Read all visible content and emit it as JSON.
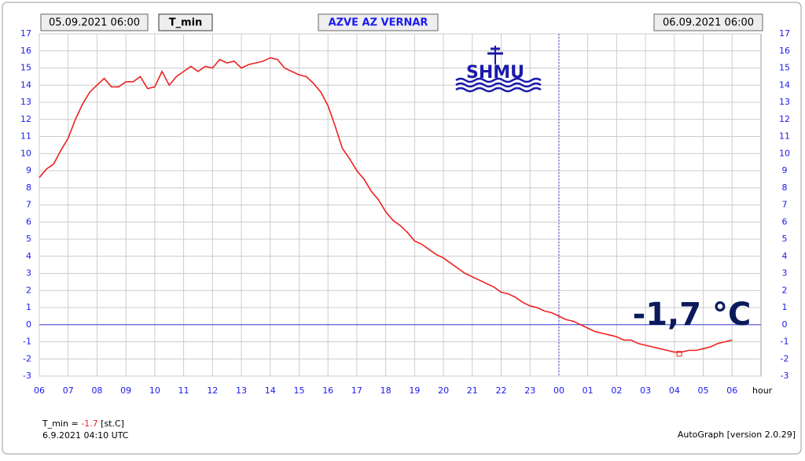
{
  "chart_data": {
    "type": "line",
    "header": {
      "start": "05.09.2021 06:00",
      "variable": "T_min",
      "station": "AZVE AZ VERNAR",
      "end": "06.09.2021 06:00"
    },
    "logo": "SHMU",
    "big_label": "-1,7 °C",
    "x_unit": "hour",
    "footer": {
      "name": "T_min =",
      "value": -1.7,
      "unit": "[st.C]",
      "time": "6.9.2021 04:10 UTC",
      "version": "AutoGraph [version 2.0.29]"
    },
    "min_point": {
      "x": 22.17,
      "y": -1.7
    },
    "day_boundary": 18,
    "xlim": [
      0,
      25
    ],
    "ylim": [
      -3,
      17
    ],
    "xticks": [
      {
        "value": 0,
        "label": "06"
      },
      {
        "value": 1,
        "label": "07"
      },
      {
        "value": 2,
        "label": "08"
      },
      {
        "value": 3,
        "label": "09"
      },
      {
        "value": 4,
        "label": "10"
      },
      {
        "value": 5,
        "label": "11"
      },
      {
        "value": 6,
        "label": "12"
      },
      {
        "value": 7,
        "label": "13"
      },
      {
        "value": 8,
        "label": "14"
      },
      {
        "value": 9,
        "label": "15"
      },
      {
        "value": 10,
        "label": "16"
      },
      {
        "value": 11,
        "label": "17"
      },
      {
        "value": 12,
        "label": "18"
      },
      {
        "value": 13,
        "label": "19"
      },
      {
        "value": 14,
        "label": "20"
      },
      {
        "value": 15,
        "label": "21"
      },
      {
        "value": 16,
        "label": "22"
      },
      {
        "value": 17,
        "label": "23"
      },
      {
        "value": 18,
        "label": "00"
      },
      {
        "value": 19,
        "label": "01"
      },
      {
        "value": 20,
        "label": "02"
      },
      {
        "value": 21,
        "label": "03"
      },
      {
        "value": 22,
        "label": "04"
      },
      {
        "value": 23,
        "label": "05"
      },
      {
        "value": 24,
        "label": "06"
      }
    ],
    "yticks": [
      -3,
      -2,
      -1,
      0,
      1,
      2,
      3,
      4,
      5,
      6,
      7,
      8,
      9,
      10,
      11,
      12,
      13,
      14,
      15,
      16,
      17
    ],
    "grid": true,
    "x": [
      0,
      0.25,
      0.5,
      0.75,
      1,
      1.25,
      1.5,
      1.75,
      2,
      2.25,
      2.5,
      2.75,
      3,
      3.25,
      3.5,
      3.75,
      4,
      4.25,
      4.5,
      4.75,
      5,
      5.25,
      5.5,
      5.75,
      6,
      6.25,
      6.5,
      6.75,
      7,
      7.25,
      7.5,
      7.75,
      8,
      8.25,
      8.5,
      8.75,
      9,
      9.25,
      9.5,
      9.75,
      10,
      10.25,
      10.5,
      10.75,
      11,
      11.25,
      11.5,
      11.75,
      12,
      12.25,
      12.5,
      12.75,
      13,
      13.25,
      13.5,
      13.75,
      14,
      14.25,
      14.5,
      14.75,
      15,
      15.25,
      15.5,
      15.75,
      16,
      16.25,
      16.5,
      16.75,
      17,
      17.25,
      17.5,
      17.75,
      18,
      18.25,
      18.5,
      18.75,
      19,
      19.25,
      19.5,
      19.75,
      20,
      20.25,
      20.5,
      20.75,
      21,
      21.25,
      21.5,
      21.75,
      22,
      22.25,
      22.5,
      22.75,
      23,
      23.25,
      23.5,
      23.75,
      24
    ],
    "series": [
      {
        "name": "T_min",
        "color": "#ee2222",
        "values": [
          8.6,
          9.1,
          9.4,
          10.2,
          10.9,
          12.0,
          12.9,
          13.6,
          14.0,
          14.4,
          13.9,
          13.9,
          14.2,
          14.2,
          14.5,
          13.8,
          13.9,
          14.8,
          14.0,
          14.5,
          14.8,
          15.1,
          14.8,
          15.1,
          15.0,
          15.5,
          15.3,
          15.4,
          15.0,
          15.2,
          15.3,
          15.4,
          15.6,
          15.5,
          15.0,
          14.8,
          14.6,
          14.5,
          14.1,
          13.6,
          12.8,
          11.6,
          10.3,
          9.7,
          9.0,
          8.5,
          7.8,
          7.3,
          6.6,
          6.1,
          5.8,
          5.4,
          4.9,
          4.7,
          4.4,
          4.1,
          3.9,
          3.6,
          3.3,
          3.0,
          2.8,
          2.6,
          2.4,
          2.2,
          1.9,
          1.8,
          1.6,
          1.3,
          1.1,
          1.0,
          0.8,
          0.7,
          0.5,
          0.3,
          0.2,
          0.0,
          -0.2,
          -0.4,
          -0.5,
          -0.6,
          -0.7,
          -0.9,
          -0.9,
          -1.1,
          -1.2,
          -1.3,
          -1.4,
          -1.5,
          -1.6,
          -1.6,
          -1.5,
          -1.5,
          -1.4,
          -1.3,
          -1.1,
          -1.0,
          -0.9
        ]
      }
    ]
  }
}
